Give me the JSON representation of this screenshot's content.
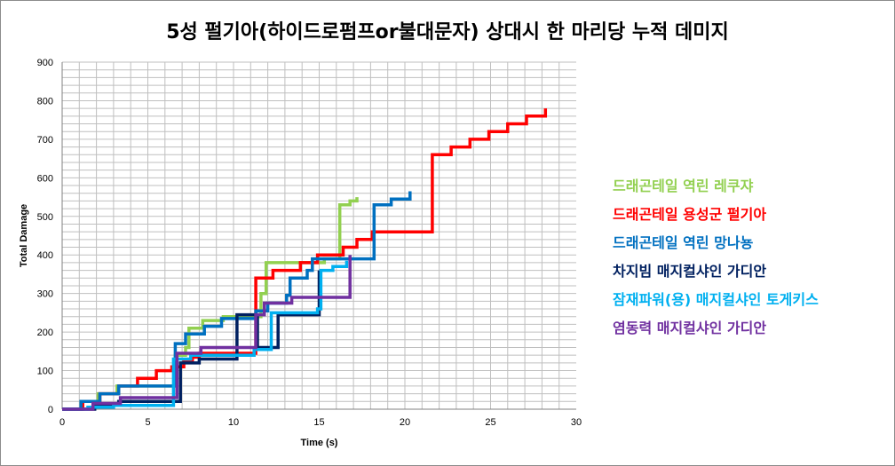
{
  "chart_data": {
    "type": "line",
    "title": "5성 펄기아(하이드로펌프or불대문자) 상대시 한 마리당 누적 데미지",
    "xlabel": "Time (s)",
    "ylabel": "Total Damage",
    "xlim": [
      0,
      30
    ],
    "ylim": [
      0,
      900
    ],
    "x_ticks": [
      0,
      5,
      10,
      15,
      20,
      25,
      30
    ],
    "y_ticks": [
      0,
      100,
      200,
      300,
      400,
      500,
      600,
      700,
      800,
      900
    ],
    "grid": true,
    "legend_position": "right",
    "step": true,
    "series": [
      {
        "name": "드래곤테일 역린 레쿠쟈",
        "color": "#92D050",
        "points": [
          [
            0,
            0
          ],
          [
            1.1,
            0
          ],
          [
            1.1,
            20
          ],
          [
            2.1,
            20
          ],
          [
            2.1,
            40
          ],
          [
            3.2,
            40
          ],
          [
            3.2,
            60
          ],
          [
            6.6,
            60
          ],
          [
            6.6,
            140
          ],
          [
            7.2,
            140
          ],
          [
            7.2,
            160
          ],
          [
            7.4,
            160
          ],
          [
            7.4,
            210
          ],
          [
            8.2,
            210
          ],
          [
            8.2,
            230
          ],
          [
            9.4,
            230
          ],
          [
            9.4,
            240
          ],
          [
            11.6,
            240
          ],
          [
            11.6,
            300
          ],
          [
            11.9,
            300
          ],
          [
            11.9,
            380
          ],
          [
            15.3,
            380
          ],
          [
            15.3,
            390
          ],
          [
            16.2,
            390
          ],
          [
            16.2,
            530
          ],
          [
            16.8,
            530
          ],
          [
            16.8,
            540
          ],
          [
            17.2,
            540
          ],
          [
            17.2,
            550
          ]
        ]
      },
      {
        "name": "드래곤테일 용성군 펄기아",
        "color": "#FF0000",
        "points": [
          [
            0,
            0
          ],
          [
            1.2,
            0
          ],
          [
            1.2,
            20
          ],
          [
            2.2,
            20
          ],
          [
            2.2,
            40
          ],
          [
            3.3,
            40
          ],
          [
            3.3,
            60
          ],
          [
            4.4,
            60
          ],
          [
            4.4,
            80
          ],
          [
            5.5,
            80
          ],
          [
            5.5,
            100
          ],
          [
            6.4,
            100
          ],
          [
            6.4,
            110
          ],
          [
            7.1,
            110
          ],
          [
            7.1,
            125
          ],
          [
            7.6,
            125
          ],
          [
            7.6,
            135
          ],
          [
            8.0,
            135
          ],
          [
            8.0,
            145
          ],
          [
            11.3,
            145
          ],
          [
            11.3,
            340
          ],
          [
            12.3,
            340
          ],
          [
            12.3,
            360
          ],
          [
            13.9,
            360
          ],
          [
            13.9,
            380
          ],
          [
            14.9,
            380
          ],
          [
            14.9,
            400
          ],
          [
            16.4,
            400
          ],
          [
            16.4,
            420
          ],
          [
            17.2,
            420
          ],
          [
            17.2,
            440
          ],
          [
            18.1,
            440
          ],
          [
            18.1,
            460
          ],
          [
            21.6,
            460
          ],
          [
            21.6,
            660
          ],
          [
            22.7,
            660
          ],
          [
            22.7,
            680
          ],
          [
            23.8,
            680
          ],
          [
            23.8,
            700
          ],
          [
            24.9,
            700
          ],
          [
            24.9,
            720
          ],
          [
            26.0,
            720
          ],
          [
            26.0,
            740
          ],
          [
            27.1,
            740
          ],
          [
            27.1,
            760
          ],
          [
            28.2,
            760
          ],
          [
            28.2,
            780
          ]
        ]
      },
      {
        "name": "드래곤테일 역린 망나뇽",
        "color": "#0070C0",
        "points": [
          [
            0,
            0
          ],
          [
            1.1,
            0
          ],
          [
            1.1,
            20
          ],
          [
            2.2,
            20
          ],
          [
            2.2,
            40
          ],
          [
            3.3,
            40
          ],
          [
            3.3,
            60
          ],
          [
            6.6,
            60
          ],
          [
            6.6,
            170
          ],
          [
            7.2,
            170
          ],
          [
            7.2,
            195
          ],
          [
            8.3,
            195
          ],
          [
            8.3,
            215
          ],
          [
            9.3,
            215
          ],
          [
            9.3,
            235
          ],
          [
            11.3,
            235
          ],
          [
            11.3,
            255
          ],
          [
            12.0,
            255
          ],
          [
            12.0,
            275
          ],
          [
            13.1,
            275
          ],
          [
            13.1,
            295
          ],
          [
            13.3,
            295
          ],
          [
            13.3,
            340
          ],
          [
            14.3,
            340
          ],
          [
            14.3,
            360
          ],
          [
            14.6,
            360
          ],
          [
            14.6,
            390
          ],
          [
            18.2,
            390
          ],
          [
            18.2,
            530
          ],
          [
            19.2,
            530
          ],
          [
            19.2,
            545
          ],
          [
            20.3,
            545
          ],
          [
            20.3,
            565
          ]
        ]
      },
      {
        "name": "차지빔 매지컬샤인 가디안",
        "color": "#002060",
        "points": [
          [
            0,
            0
          ],
          [
            1.9,
            0
          ],
          [
            1.9,
            10
          ],
          [
            3.3,
            10
          ],
          [
            3.3,
            20
          ],
          [
            6.9,
            20
          ],
          [
            6.9,
            120
          ],
          [
            8.0,
            120
          ],
          [
            8.0,
            130
          ],
          [
            10.2,
            130
          ],
          [
            10.2,
            245
          ],
          [
            11.4,
            245
          ],
          [
            11.4,
            160
          ],
          [
            12.6,
            160
          ],
          [
            12.6,
            245
          ],
          [
            15.0,
            245
          ],
          [
            15.0,
            360
          ]
        ]
      },
      {
        "name": "잠재파워(용) 매지컬샤인 토게키스",
        "color": "#00B0F0",
        "points": [
          [
            0,
            0
          ],
          [
            1.5,
            0
          ],
          [
            1.5,
            5
          ],
          [
            3.0,
            5
          ],
          [
            3.0,
            10
          ],
          [
            6.5,
            10
          ],
          [
            6.5,
            130
          ],
          [
            7.5,
            130
          ],
          [
            7.5,
            140
          ],
          [
            11.2,
            140
          ],
          [
            11.2,
            155
          ],
          [
            12.2,
            155
          ],
          [
            12.2,
            250
          ],
          [
            14.9,
            250
          ],
          [
            14.9,
            260
          ],
          [
            15.1,
            260
          ],
          [
            15.1,
            360
          ],
          [
            15.8,
            360
          ],
          [
            15.8,
            370
          ],
          [
            16.6,
            370
          ],
          [
            16.6,
            385
          ]
        ]
      },
      {
        "name": "염동력 매지컬샤인 가디안",
        "color": "#7030A0",
        "points": [
          [
            0,
            0
          ],
          [
            1.8,
            0
          ],
          [
            1.8,
            15
          ],
          [
            3.4,
            15
          ],
          [
            3.4,
            30
          ],
          [
            6.7,
            30
          ],
          [
            6.7,
            145
          ],
          [
            8.1,
            145
          ],
          [
            8.1,
            160
          ],
          [
            11.3,
            160
          ],
          [
            11.3,
            245
          ],
          [
            11.8,
            245
          ],
          [
            11.8,
            275
          ],
          [
            13.4,
            275
          ],
          [
            13.4,
            290
          ],
          [
            16.8,
            290
          ],
          [
            16.8,
            400
          ]
        ]
      }
    ]
  }
}
